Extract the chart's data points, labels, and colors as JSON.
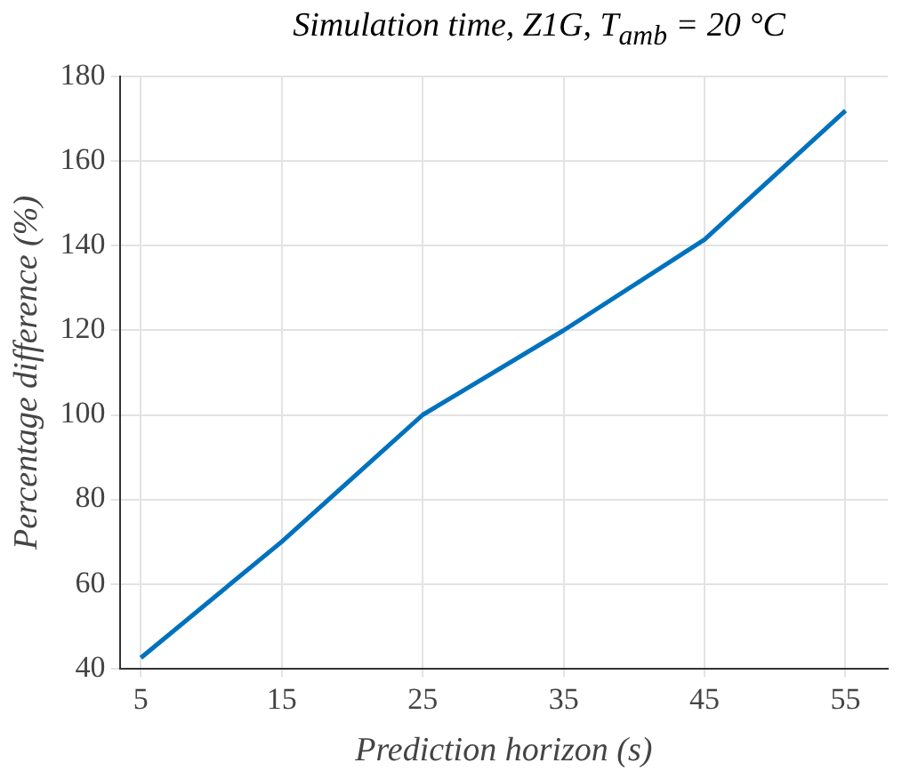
{
  "chart_data": {
    "type": "line",
    "title": "Simulation time, Z1G, T$_{amb}$ = 20 °C",
    "xlabel": "Prediction horizon (s)",
    "ylabel": "Percentage difference (%)",
    "x": [
      5,
      15,
      25,
      35,
      45,
      55
    ],
    "series": [
      {
        "color": "#0072bd",
        "values": [
          42.5,
          70,
          100,
          120,
          141.5,
          172
        ]
      }
    ],
    "xlim": [
      3.5,
      58
    ],
    "xticks": [
      5,
      15,
      25,
      35,
      45,
      55
    ],
    "ylim": [
      40,
      180
    ],
    "yticks": [
      40,
      60,
      80,
      100,
      120,
      140,
      160,
      180
    ],
    "grid": true,
    "legend": false,
    "marker": "none",
    "line_style": "solid"
  }
}
